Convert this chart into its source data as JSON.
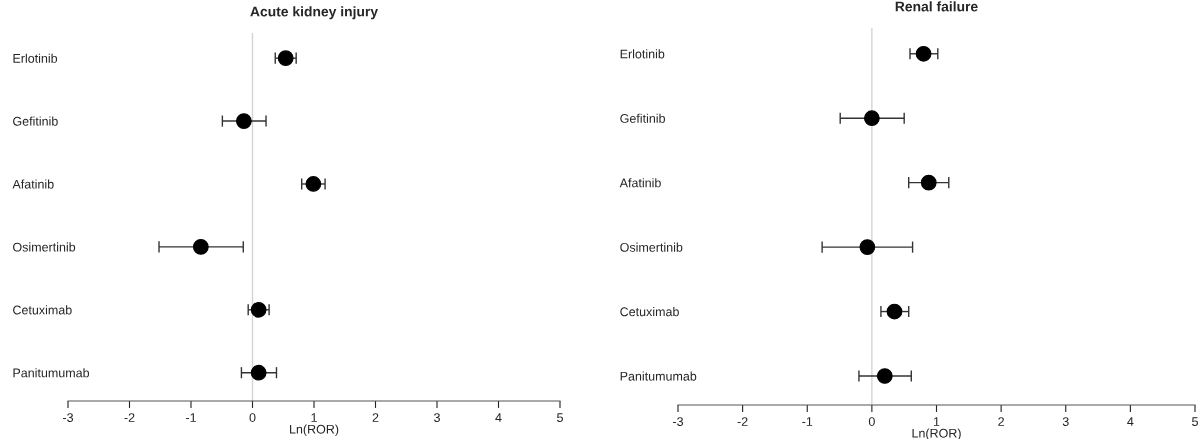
{
  "chart_data": [
    {
      "type": "scatter",
      "title": "Acute kidney injury",
      "xlabel": "Ln(ROR)",
      "orientation": "horizontal",
      "marker": "circle",
      "categories": [
        "Erlotinib",
        "Gefitinib",
        "Afatinib",
        "Osimertinib",
        "Cetuximab",
        "Panitumumab"
      ],
      "series": [
        {
          "color": "#000000",
          "values": [
            0.54,
            -0.14,
            0.99,
            -0.84,
            0.1,
            0.1
          ],
          "errors": [
            [
              0.37,
              0.71
            ],
            [
              -0.49,
              0.22
            ],
            [
              0.8,
              1.18
            ],
            [
              -1.52,
              -0.15
            ],
            [
              -0.07,
              0.27
            ],
            [
              -0.18,
              0.39
            ]
          ]
        }
      ],
      "xlim": [
        -3,
        5
      ],
      "xticks": [
        -3,
        -2,
        -1,
        0,
        1,
        2,
        3,
        4,
        5
      ],
      "grid": false,
      "legend": false,
      "ref_lines": [
        {
          "axis": "x",
          "value": 0,
          "color": "#d3d3d3"
        }
      ]
    },
    {
      "type": "scatter",
      "title": "Renal failure",
      "xlabel": "Ln(ROR)",
      "orientation": "horizontal",
      "marker": "circle",
      "categories": [
        "Erlotinib",
        "Gefitinib",
        "Afatinib",
        "Osimertinib",
        "Cetuximab",
        "Panitumumab"
      ],
      "series": [
        {
          "color": "#000000",
          "values": [
            0.8,
            0.0,
            0.88,
            -0.07,
            0.35,
            0.2
          ],
          "errors": [
            [
              0.59,
              1.02
            ],
            [
              -0.49,
              0.5
            ],
            [
              0.57,
              1.19
            ],
            [
              -0.77,
              0.63
            ],
            [
              0.14,
              0.57
            ],
            [
              -0.2,
              0.61
            ]
          ]
        }
      ],
      "xlim": [
        -3,
        5
      ],
      "xticks": [
        -3,
        -2,
        -1,
        0,
        1,
        2,
        3,
        4,
        5
      ],
      "grid": false,
      "legend": false,
      "ref_lines": [
        {
          "axis": "x",
          "value": 0,
          "color": "#d3d3d3"
        }
      ]
    }
  ]
}
